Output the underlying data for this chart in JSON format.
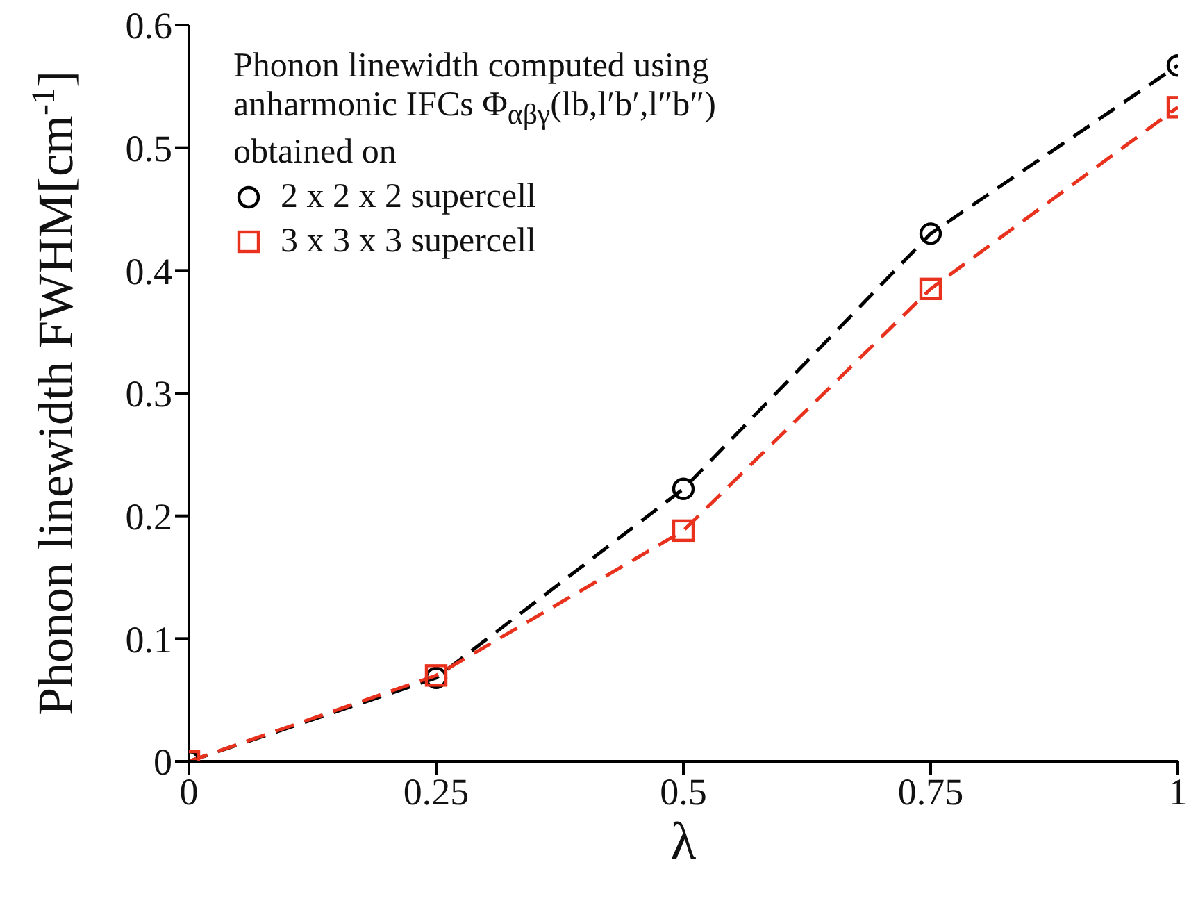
{
  "chart_data": {
    "type": "line",
    "xlabel": "λ",
    "ylabel": "Phonon linewidth FWHM[cm$^{-1}$]",
    "legend_title": "Phonon linewidth computed using anharmonic IFCs Φ$_{αβγ}$(lb,l′b′,l″b″) obtained on",
    "x": [
      0,
      0.25,
      0.5,
      0.75,
      1
    ],
    "series": [
      {
        "name": "2 x 2 x 2 supercell",
        "color": "#000000",
        "marker": "circle",
        "values": [
          0,
          0.068,
          0.222,
          0.43,
          0.567
        ]
      },
      {
        "name": "3 x 3 x 3 supercell",
        "color": "#e8321e",
        "marker": "square",
        "values": [
          0,
          0.07,
          0.188,
          0.385,
          0.533
        ]
      }
    ],
    "xlim": [
      0,
      1
    ],
    "xticks": [
      0,
      0.25,
      0.5,
      0.75,
      1
    ],
    "ylim": [
      0,
      0.6
    ],
    "yticks": [
      0,
      0.1,
      0.2,
      0.3,
      0.4,
      0.5,
      0.6
    ],
    "grid": false,
    "legend": "top left",
    "line_style": "dashed"
  }
}
